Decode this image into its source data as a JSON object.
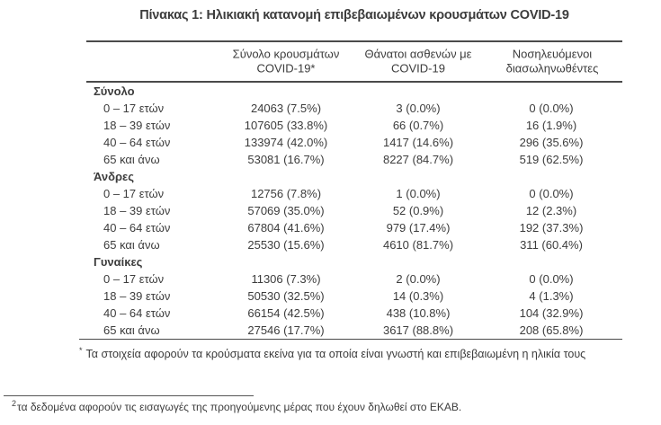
{
  "colors": {
    "text": "#3c3c3c",
    "rule": "#4a4a4a",
    "background": "#ffffff"
  },
  "title": "Πίνακας 1: Ηλικιακή κατανομή επιβεβαιωμένων κρουσμάτων COVID-19",
  "table": {
    "headers": [
      {
        "line1": "Σύνολο κρουσμάτων",
        "line2": "COVID-19*"
      },
      {
        "line1": "Θάνατοι ασθενών με",
        "line2": "COVID-19"
      },
      {
        "line1": "Νοσηλευόμενοι",
        "line2": "διασωληνωθέντες"
      }
    ],
    "sections": [
      {
        "label": "Σύνολο",
        "rows": [
          {
            "age": "0 – 17 ετών",
            "cases": "24063 (7.5%)",
            "deaths": "3 (0.0%)",
            "intubated": "0 (0.0%)"
          },
          {
            "age": "18 – 39 ετών",
            "cases": "107605 (33.8%)",
            "deaths": "66 (0.7%)",
            "intubated": "16 (1.9%)"
          },
          {
            "age": "40 – 64 ετών",
            "cases": "133974 (42.0%)",
            "deaths": "1417 (14.6%)",
            "intubated": "296 (35.6%)"
          },
          {
            "age": "65 και άνω",
            "cases": "53081 (16.7%)",
            "deaths": "8227 (84.7%)",
            "intubated": "519 (62.5%)"
          }
        ]
      },
      {
        "label": "Άνδρες",
        "rows": [
          {
            "age": "0 – 17 ετών",
            "cases": "12756 (7.8%)",
            "deaths": "1 (0.0%)",
            "intubated": "0 (0.0%)"
          },
          {
            "age": "18 – 39 ετών",
            "cases": "57069 (35.0%)",
            "deaths": "52 (0.9%)",
            "intubated": "12 (2.3%)"
          },
          {
            "age": "40 – 64 ετών",
            "cases": "67804 (41.6%)",
            "deaths": "979 (17.4%)",
            "intubated": "192 (37.3%)"
          },
          {
            "age": "65 και άνω",
            "cases": "25530 (15.6%)",
            "deaths": "4610 (81.7%)",
            "intubated": "311 (60.4%)"
          }
        ]
      },
      {
        "label": "Γυναίκες",
        "rows": [
          {
            "age": "0 – 17 ετών",
            "cases": "11306 (7.3%)",
            "deaths": "2 (0.0%)",
            "intubated": "0 (0.0%)"
          },
          {
            "age": "18 – 39 ετών",
            "cases": "50530 (32.5%)",
            "deaths": "14 (0.3%)",
            "intubated": "4 (1.3%)"
          },
          {
            "age": "40 – 64 ετών",
            "cases": "66154 (42.5%)",
            "deaths": "438 (10.8%)",
            "intubated": "104 (32.9%)"
          },
          {
            "age": "65 και άνω",
            "cases": "27546 (17.7%)",
            "deaths": "3617 (88.8%)",
            "intubated": "208 (65.8%)"
          }
        ]
      }
    ],
    "footnote_marker": "*",
    "footnote_text": "Τα στοιχεία αφορούν τα κρούσματα εκείνα για τα οποία είναι γνωστή και επιβεβαιωμένη η ηλικία τους"
  },
  "page_footnote": {
    "marker": "2",
    "text": "τα δεδομένα αφορούν τις εισαγωγές της προηγούμενης μέρας που έχουν δηλωθεί στο ΕΚΑΒ."
  }
}
